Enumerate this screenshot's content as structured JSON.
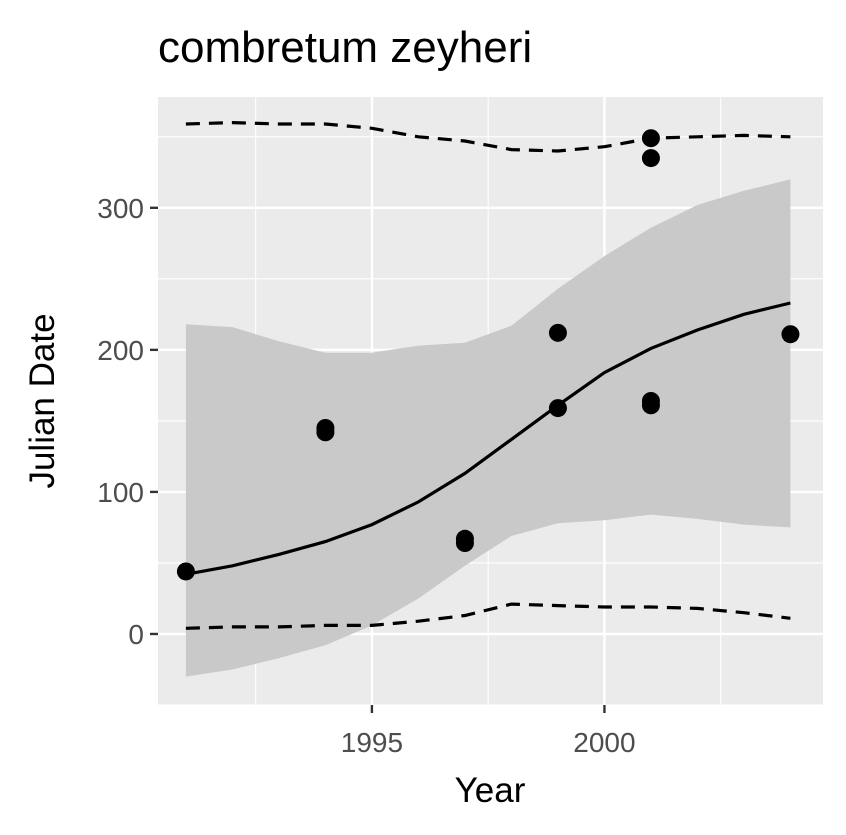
{
  "chart_data": {
    "type": "scatter",
    "title": "combretum zeyheri",
    "xlabel": "Year",
    "ylabel": "Julian Date",
    "xlim": [
      1990.4,
      2004.7
    ],
    "ylim": [
      -50,
      378
    ],
    "x_ticks": [
      1995,
      2000
    ],
    "x_tick_labels": [
      "1995",
      "2000"
    ],
    "y_ticks": [
      0,
      100,
      200,
      300
    ],
    "y_tick_labels": [
      "0",
      "100",
      "200",
      "300"
    ],
    "grid": true,
    "legend": "none",
    "colors": {
      "panel": "#ebebeb",
      "grid": "#ffffff",
      "points": "#000000",
      "ribbon": "#c9c9c9",
      "fit_line": "#000000",
      "bound_lines": "#000000"
    },
    "points": [
      {
        "x": 1991,
        "y": 44
      },
      {
        "x": 1994,
        "y": 145
      },
      {
        "x": 1994,
        "y": 142
      },
      {
        "x": 1997,
        "y": 67
      },
      {
        "x": 1997,
        "y": 64
      },
      {
        "x": 1999,
        "y": 212
      },
      {
        "x": 1999,
        "y": 159
      },
      {
        "x": 2001,
        "y": 349
      },
      {
        "x": 2001,
        "y": 335
      },
      {
        "x": 2001,
        "y": 164
      },
      {
        "x": 2001,
        "y": 161
      },
      {
        "x": 2004,
        "y": 211
      }
    ],
    "fit_line": {
      "x": [
        1991,
        1992,
        1993,
        1994,
        1995,
        1996,
        1997,
        1998,
        1999,
        2000,
        2001,
        2002,
        2003,
        2004
      ],
      "y": [
        42,
        48,
        56,
        65,
        77,
        93,
        113,
        137,
        161,
        184,
        201,
        214,
        225,
        233
      ]
    },
    "ribbon": {
      "x": [
        1991,
        1992,
        1993,
        1994,
        1995,
        1996,
        1997,
        1998,
        1999,
        2000,
        2001,
        2002,
        2003,
        2004
      ],
      "lower": [
        -30,
        -25,
        -17,
        -8,
        6,
        25,
        48,
        69,
        78,
        80,
        84,
        81,
        77,
        75
      ],
      "upper": [
        218,
        216,
        206,
        198,
        198,
        203,
        205,
        217,
        243,
        266,
        286,
        302,
        312,
        320
      ]
    },
    "upper_bound": {
      "x": [
        1991,
        1992,
        1993,
        1994,
        1995,
        1996,
        1997,
        1998,
        1999,
        2000,
        2001,
        2002,
        2003,
        2004
      ],
      "y": [
        359,
        360,
        359,
        359,
        356,
        350,
        347,
        341,
        340,
        343,
        349,
        350,
        351,
        350
      ]
    },
    "lower_bound": {
      "x": [
        1991,
        1992,
        1993,
        1994,
        1995,
        1996,
        1997,
        1998,
        1999,
        2000,
        2001,
        2002,
        2003,
        2004
      ],
      "y": [
        4,
        5,
        5,
        6,
        6,
        9,
        13,
        21,
        20,
        19,
        19,
        18,
        15,
        11
      ]
    }
  }
}
